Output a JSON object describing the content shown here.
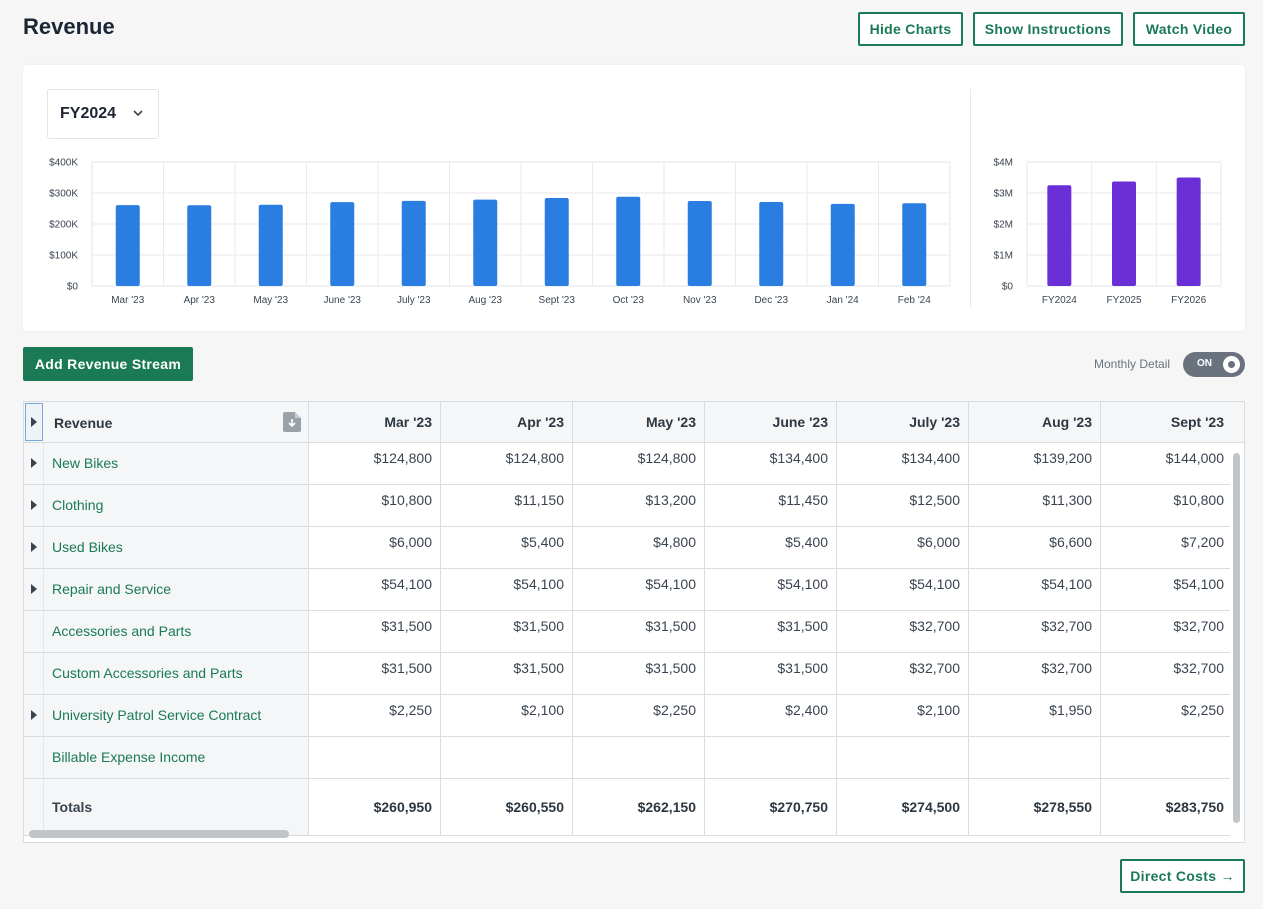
{
  "page": {
    "title": "Revenue"
  },
  "toolbar": {
    "hide_charts": "Hide Charts",
    "show_instructions": "Show Instructions",
    "watch_video": "Watch Video"
  },
  "chart_panel": {
    "year_selected": "FY2024"
  },
  "chart_data": [
    {
      "type": "bar",
      "categories": [
        "Mar '23",
        "Apr '23",
        "May '23",
        "June '23",
        "July '23",
        "Aug '23",
        "Sept '23",
        "Oct '23",
        "Nov '23",
        "Dec '23",
        "Jan '24",
        "Feb '24"
      ],
      "values": [
        260950,
        260550,
        262150,
        270750,
        274500,
        278550,
        283750,
        288000,
        274000,
        271000,
        265000,
        267000
      ],
      "y_ticks": [
        "$0",
        "$100K",
        "$200K",
        "$300K",
        "$400K"
      ],
      "ylim": [
        0,
        400000
      ],
      "color": "#2a7de1",
      "grid": true
    },
    {
      "type": "bar",
      "categories": [
        "FY2024",
        "FY2025",
        "FY2026"
      ],
      "values": [
        3250000,
        3370000,
        3500000
      ],
      "y_ticks": [
        "$0",
        "$1M",
        "$2M",
        "$3M",
        "$4M"
      ],
      "ylim": [
        0,
        4000000
      ],
      "color": "#6a2fd6",
      "grid": true
    }
  ],
  "controls": {
    "add_stream": "Add Revenue Stream",
    "monthly_detail_label": "Monthly Detail",
    "monthly_detail_state": "ON"
  },
  "table": {
    "header": "Revenue",
    "columns": [
      "Mar '23",
      "Apr '23",
      "May '23",
      "June '23",
      "July '23",
      "Aug '23",
      "Sept '23"
    ],
    "rows": [
      {
        "name": "New Bikes",
        "expandable": true,
        "values": [
          "$124,800",
          "$124,800",
          "$124,800",
          "$134,400",
          "$134,400",
          "$139,200",
          "$144,000"
        ]
      },
      {
        "name": "Clothing",
        "expandable": true,
        "values": [
          "$10,800",
          "$11,150",
          "$13,200",
          "$11,450",
          "$12,500",
          "$11,300",
          "$10,800"
        ]
      },
      {
        "name": "Used Bikes",
        "expandable": true,
        "values": [
          "$6,000",
          "$5,400",
          "$4,800",
          "$5,400",
          "$6,000",
          "$6,600",
          "$7,200"
        ]
      },
      {
        "name": "Repair and Service",
        "expandable": true,
        "values": [
          "$54,100",
          "$54,100",
          "$54,100",
          "$54,100",
          "$54,100",
          "$54,100",
          "$54,100"
        ]
      },
      {
        "name": "Accessories and Parts",
        "expandable": false,
        "values": [
          "$31,500",
          "$31,500",
          "$31,500",
          "$31,500",
          "$32,700",
          "$32,700",
          "$32,700"
        ]
      },
      {
        "name": "Custom Accessories and Parts",
        "expandable": false,
        "values": [
          "$31,500",
          "$31,500",
          "$31,500",
          "$31,500",
          "$32,700",
          "$32,700",
          "$32,700"
        ]
      },
      {
        "name": "University Patrol Service Contract",
        "expandable": true,
        "values": [
          "$2,250",
          "$2,100",
          "$2,250",
          "$2,400",
          "$2,100",
          "$1,950",
          "$2,250"
        ]
      },
      {
        "name": "Billable Expense Income",
        "expandable": false,
        "values": [
          "",
          "",
          "",
          "",
          "",
          "",
          ""
        ]
      }
    ],
    "totals": {
      "label": "Totals",
      "values": [
        "$260,950",
        "$260,550",
        "$262,150",
        "$270,750",
        "$274,500",
        "$278,550",
        "$283,750"
      ]
    }
  },
  "footer": {
    "next": "Direct Costs →"
  },
  "icons": {
    "select": "chevron-down-icon",
    "export": "download-file-icon",
    "expand": "caret-right-icon"
  }
}
